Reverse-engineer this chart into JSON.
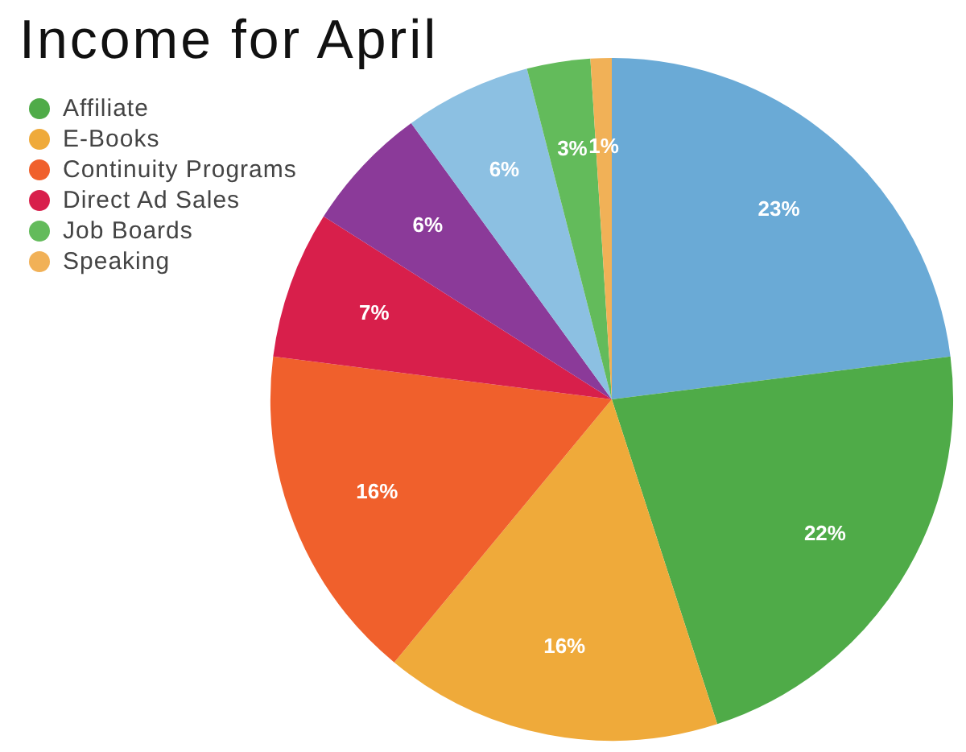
{
  "chart_data": {
    "type": "pie",
    "title": "Income for April",
    "categories": [
      null,
      "Affiliate",
      "E-Books",
      "Continuity Programs",
      "Direct Ad Sales",
      null,
      null,
      "Job Boards",
      "Speaking"
    ],
    "values": [
      23,
      22,
      16,
      16,
      7,
      6,
      6,
      3,
      1
    ],
    "colors": [
      "#6aaad6",
      "#4fab48",
      "#efaa3a",
      "#f0602c",
      "#d81f4b",
      "#8b3a99",
      "#8cc0e2",
      "#63bb5b",
      "#f1b157"
    ],
    "value_labels": [
      "23%",
      "22%",
      "16%",
      "16%",
      "7%",
      "6%",
      "6%",
      "3%",
      "1%"
    ],
    "legend": "top left"
  }
}
